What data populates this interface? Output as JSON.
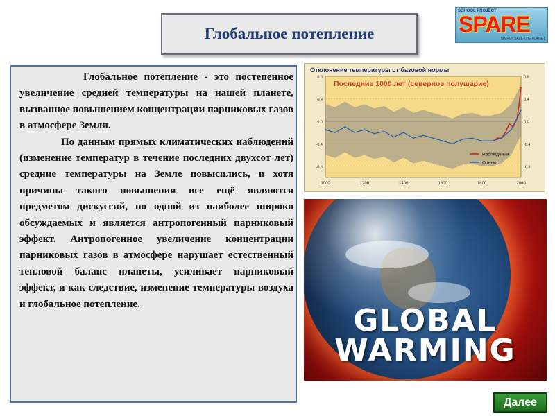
{
  "slide": {
    "title": "Глобальное потепление",
    "paragraphs": [
      "Глобальное потепление - это постепенное увеличение средней температуры на нашей планете, вызванное повышением концентрации парниковых газов в атмосфере Земли.",
      "По данным прямых климатических наблюдений (изменение температур в течение последних двухсот лет) средние температуры на Земле повысились, и хотя причины такого повышения все ещё являются предметом дискуссий, но одной из наиболее широко обсуждаемых и является антропогенный парниковый эффект. Антропогенное увеличение концентрации парниковых газов в атмосфере нарушает естественный тепловой баланс планеты, усиливает парниковый эффект, и как следствие, изменение температуры воздуха и глобальное потепление."
    ],
    "next_button": "Далее"
  },
  "logo": {
    "small_text": "SCHOOL PROJECT",
    "brand": "SPARE",
    "tagline": "SIMPLY SAVE THE PLANET"
  },
  "photo": {
    "line1": "GLOBAL",
    "line2": "WARMING"
  },
  "chart_data": {
    "type": "line",
    "title": "Отклонение температуры от базовой нормы",
    "subtitle": "Последние 1000 лет (северное полушарие)",
    "xlim": [
      1000,
      2000
    ],
    "ylim": [
      -1.0,
      0.8
    ],
    "x_ticks": [
      1000,
      1200,
      1400,
      1600,
      1800,
      2000
    ],
    "y_ticks": [
      0.8,
      0.4,
      0.0,
      -0.4,
      -0.8
    ],
    "y_tick_labels": [
      "0.8",
      "0.4",
      "0.0",
      "-0.4",
      "-0.8"
    ],
    "legend_position": "bottom-right",
    "series": [
      {
        "name": "Наблюдения",
        "color": "#cc2a1a",
        "x": [
          1860,
          1880,
          1900,
          1920,
          1940,
          1960,
          1980,
          1990,
          2000
        ],
        "values": [
          -0.35,
          -0.3,
          -0.3,
          -0.2,
          -0.05,
          -0.1,
          0.05,
          0.3,
          0.6
        ]
      },
      {
        "name": "Оценка",
        "color": "#2a5fb0",
        "x": [
          1000,
          1050,
          1100,
          1150,
          1200,
          1250,
          1300,
          1350,
          1400,
          1450,
          1500,
          1550,
          1600,
          1650,
          1700,
          1750,
          1800,
          1850,
          1900,
          1950,
          2000
        ],
        "values": [
          -0.15,
          -0.2,
          -0.1,
          -0.2,
          -0.15,
          -0.22,
          -0.18,
          -0.28,
          -0.2,
          -0.3,
          -0.25,
          -0.3,
          -0.35,
          -0.4,
          -0.32,
          -0.3,
          -0.35,
          -0.35,
          -0.3,
          -0.15,
          0.2
        ]
      }
    ]
  }
}
